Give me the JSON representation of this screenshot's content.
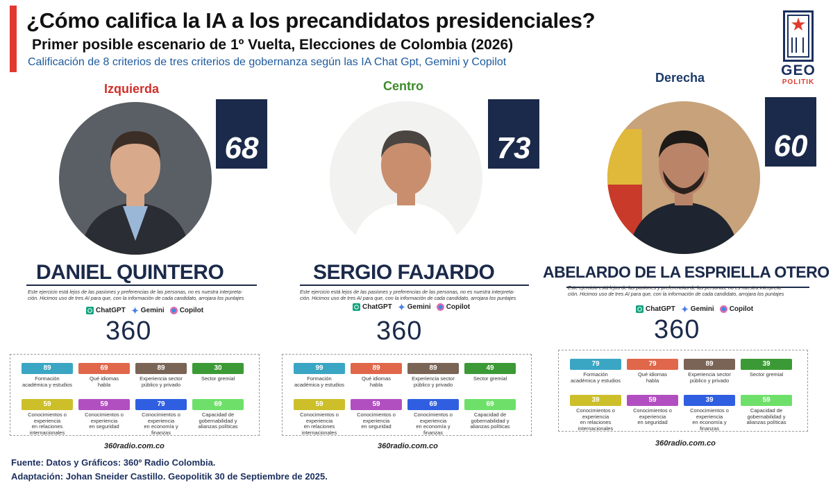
{
  "header": {
    "title": "¿Cómo califica la IA a los precandidatos presidenciales?",
    "subtitle": "Primer posible escenario de 1º Vuelta, Elecciones de Colombia (2026)",
    "description": "Calificación de 8 criterios de tres criterios de gobernanza según las IA Chat Gpt, Gemini y Copilot"
  },
  "logo": {
    "line1": "GEO",
    "line2": "POLITIK"
  },
  "common": {
    "note_line1": "Este ejercicio está lejos de las pasiones y preferencias de las personas, no es nuestra interpreta-",
    "note_line2": "ción. Hicimos uso de tres AI para que, con la información de cada candidato, arrojara los puntajes",
    "ai_tools": [
      "ChatGPT",
      "Gemini",
      "Copilot"
    ],
    "brand": "360",
    "site": "360radio.com.co"
  },
  "criteria_labels": [
    [
      "Formación",
      "académica y estudios"
    ],
    [
      "Qué idiomas",
      "habla"
    ],
    [
      "Experiencia sector",
      "público y privado"
    ],
    [
      "Sector gremial",
      ""
    ],
    [
      "Conocimientos o experiencia",
      "en relaciones internacionales"
    ],
    [
      "Conocimientos o experiencia",
      "en seguridad"
    ],
    [
      "Conocimientos o experiencia",
      "en economía y finanzas"
    ],
    [
      "Capacidad de",
      "gobernabilidad y alianzas políticas"
    ]
  ],
  "criteria_colors": [
    "#3aa6c4",
    "#e0674a",
    "#7a6456",
    "#3c9a36",
    "#cdbf2a",
    "#b24fc0",
    "#2f5ee0",
    "#6ee06a"
  ],
  "candidates": [
    {
      "group": "Izquierda",
      "group_color": "#d0302a",
      "score": "68",
      "name": "DANIEL QUINTERO",
      "criteria": [
        "89",
        "69",
        "89",
        "30",
        "59",
        "59",
        "79",
        "69"
      ]
    },
    {
      "group": "Centro",
      "group_color": "#3c8a2a",
      "score": "73",
      "name": "SERGIO FAJARDO",
      "criteria": [
        "99",
        "89",
        "89",
        "49",
        "59",
        "59",
        "69",
        "69"
      ]
    },
    {
      "group": "Derecha",
      "group_color": "#1b3a6a",
      "score": "60",
      "name": "ABELARDO DE LA ESPRIELLA OTERO",
      "criteria": [
        "79",
        "79",
        "89",
        "39",
        "39",
        "59",
        "39",
        "59"
      ]
    }
  ],
  "footer": {
    "source": "Fuente: Datos y Gráficos: 360º Radio Colombia.",
    "adaptation": "Adaptación: Johan Sneider Castillo. Geopolitik 30 de Septiembre de 2025."
  }
}
